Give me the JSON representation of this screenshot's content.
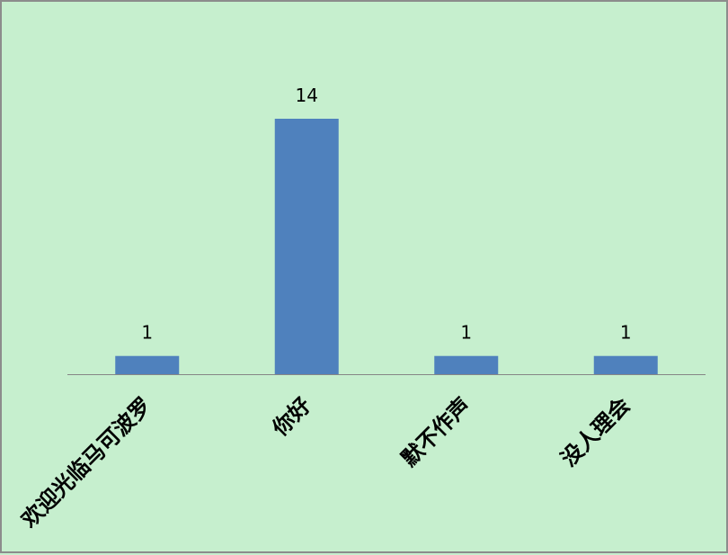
{
  "chart_data": {
    "type": "bar",
    "title": "",
    "xlabel": "",
    "ylabel": "",
    "categories": [
      "欢迎光临马可波罗",
      "你好",
      "默不作声",
      "没人理会"
    ],
    "values": [
      1,
      14,
      1,
      1
    ],
    "data_labels": [
      "1",
      "14",
      "1",
      "1"
    ],
    "ylim": [
      0,
      14
    ],
    "grid": false,
    "legend": "none",
    "colors": {
      "bar": "#4f81bd",
      "background": "#c6efce",
      "border": "#8c8c8c",
      "axis": "#868686"
    }
  }
}
